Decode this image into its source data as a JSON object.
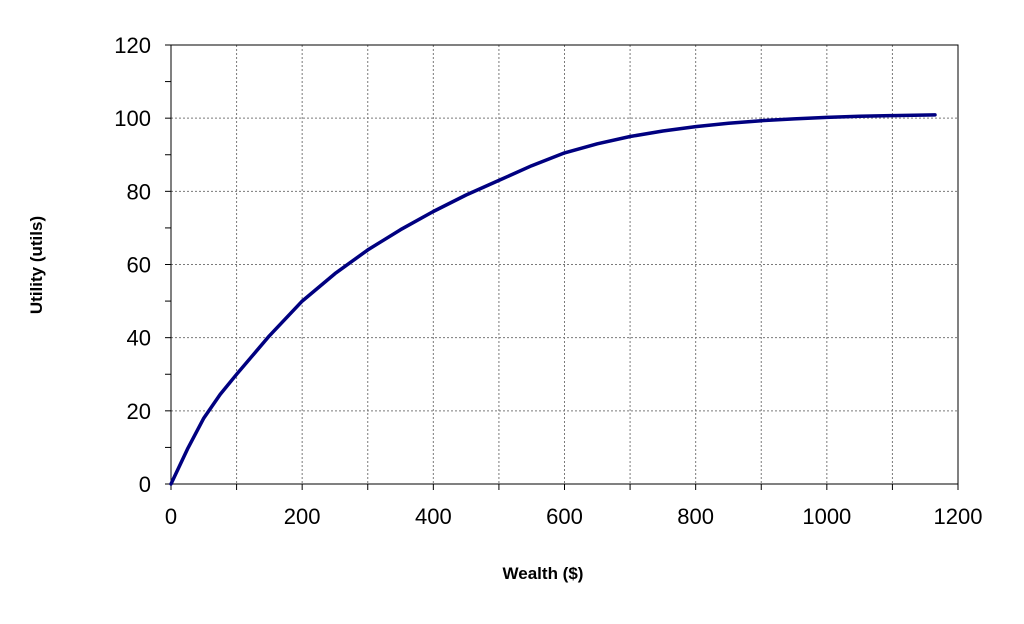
{
  "chart_data": {
    "type": "line",
    "title": "",
    "xlabel": "Wealth ($)",
    "ylabel": "Utility (utils)",
    "xlim": [
      0,
      1200
    ],
    "ylim": [
      0,
      120
    ],
    "x_ticks": [
      0,
      200,
      400,
      600,
      800,
      1000,
      1200
    ],
    "y_ticks": [
      0,
      20,
      40,
      60,
      80,
      100,
      120
    ],
    "x_minor_step": 100,
    "y_minor_step": 10,
    "grid": true,
    "series": [
      {
        "color": "#000080",
        "x": [
          0,
          25,
          50,
          75,
          100,
          150,
          200,
          250,
          300,
          350,
          400,
          450,
          500,
          550,
          600,
          650,
          700,
          750,
          800,
          850,
          900,
          950,
          1000,
          1050,
          1100,
          1165
        ],
        "y": [
          0,
          9.5,
          18,
          24.5,
          30,
          40.5,
          50,
          57.5,
          64,
          69.5,
          74.5,
          79,
          83,
          87,
          90.5,
          93,
          95,
          96.5,
          97.7,
          98.6,
          99.3,
          99.8,
          100.2,
          100.5,
          100.7,
          100.9
        ]
      }
    ]
  }
}
